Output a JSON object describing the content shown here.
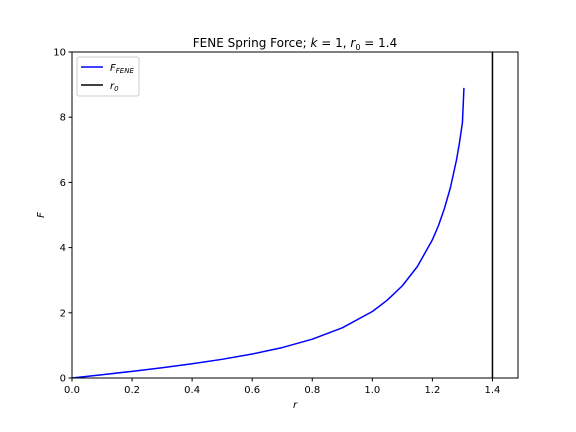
{
  "chart_data": {
    "type": "line",
    "title": "FENE Spring Force; k = 1, r₀ = 1.4",
    "title_parts": {
      "prefix": "FENE Spring Force; ",
      "k_symbol": "k",
      "k_eq": " = 1, ",
      "r_symbol": "r",
      "r_sub": "0",
      "r_eq": " = 1.4"
    },
    "xlabel": "r",
    "ylabel": "F",
    "xlim": [
      0.0,
      1.485
    ],
    "ylim": [
      0,
      10
    ],
    "xticks": [
      "0.0",
      "0.2",
      "0.4",
      "0.6",
      "0.8",
      "1.0",
      "1.2",
      "1.4"
    ],
    "yticks": [
      "0",
      "2",
      "4",
      "6",
      "8",
      "10"
    ],
    "grid": false,
    "legend_position": "top-left",
    "parameters": {
      "k": 1,
      "r0": 1.4
    },
    "series": [
      {
        "name": "F_FENE",
        "legend_main": "F",
        "legend_sub": "FENE",
        "color": "#0000ff",
        "x": [
          0.0,
          0.1,
          0.2,
          0.3,
          0.4,
          0.5,
          0.6,
          0.7,
          0.8,
          0.9,
          1.0,
          1.05,
          1.1,
          1.15,
          1.2,
          1.22,
          1.24,
          1.26,
          1.28,
          1.29,
          1.3,
          1.305
        ],
        "y": [
          0.0,
          0.1,
          0.204,
          0.314,
          0.436,
          0.573,
          0.735,
          0.933,
          1.19,
          1.54,
          2.04,
          2.39,
          2.83,
          3.42,
          4.24,
          4.67,
          5.2,
          5.84,
          6.68,
          7.21,
          7.84,
          8.9
        ]
      },
      {
        "name": "r_0",
        "legend_main": "r",
        "legend_sub": "0",
        "color": "#000000",
        "x": [
          1.4,
          1.4
        ],
        "y": [
          0,
          10
        ]
      }
    ]
  }
}
